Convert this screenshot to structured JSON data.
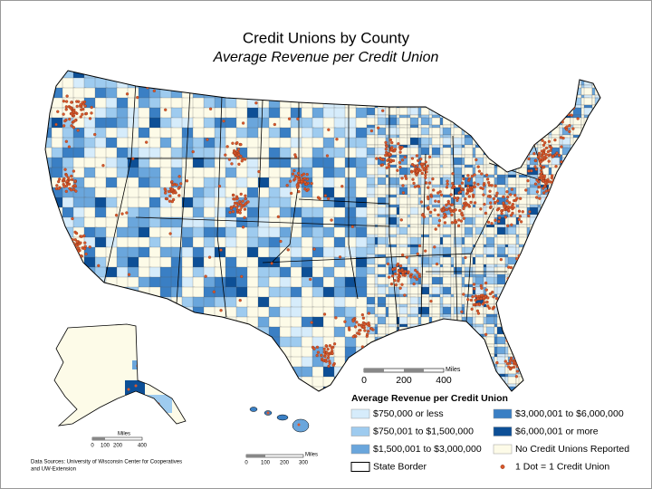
{
  "header": {
    "title": "Credit Unions by County",
    "subtitle": "Average Revenue per Credit Union"
  },
  "legend": {
    "title": "Average Revenue per Credit Union",
    "items": [
      {
        "label": "$750,000 or less",
        "color": "#d6ecfb"
      },
      {
        "label": "$750,001 to $1,500,000",
        "color": "#9ecbef"
      },
      {
        "label": "$1,500,001 to $3,000,000",
        "color": "#6aa6dc"
      },
      {
        "label": "State Border",
        "color": "#ffffff"
      },
      {
        "label": "$3,000,001 to $6,000,000",
        "color": "#3a7fc4"
      },
      {
        "label": "$6,000,001 or more",
        "color": "#0d4f96"
      },
      {
        "label": "No Credit Unions Reported",
        "color": "#fdfbe8"
      },
      {
        "label": "1 Dot = 1 Credit Union",
        "color": "#d9582b"
      }
    ]
  },
  "scale_bars": {
    "main": {
      "labels": [
        "0",
        "200",
        "400"
      ],
      "unit": "Miles"
    },
    "alaska": {
      "labels": [
        "0",
        "100",
        "200",
        "400"
      ],
      "unit": "Miles"
    },
    "hawaii": {
      "labels": [
        "0",
        "100",
        "200",
        "300"
      ],
      "unit": "Miles"
    }
  },
  "source": [
    "Data Sources: University of Wisconsin Center for Cooperatives",
    "and UW-Extension"
  ]
}
